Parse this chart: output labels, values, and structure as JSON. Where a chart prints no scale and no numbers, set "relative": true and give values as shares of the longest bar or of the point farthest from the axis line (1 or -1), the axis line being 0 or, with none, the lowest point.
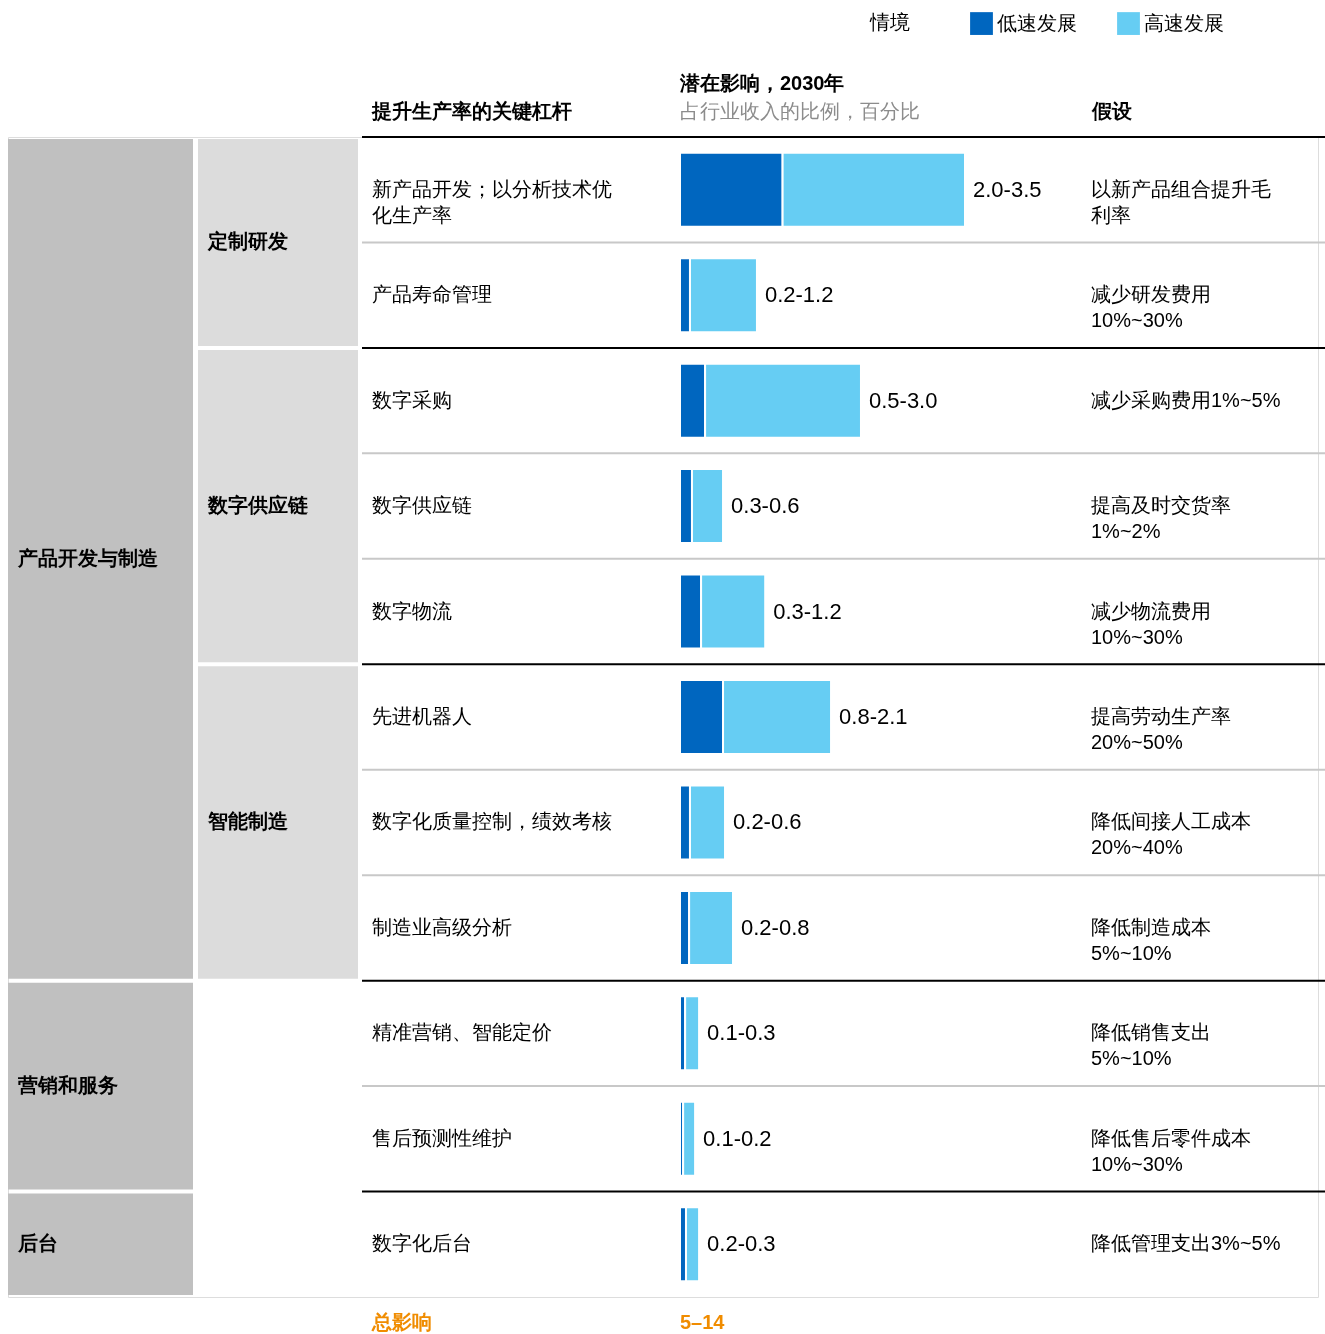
{
  "chart_data": {
    "type": "bar",
    "orientation": "horizontal",
    "stacked": true,
    "relative": true,
    "title": "潜在影响，2030年",
    "subtitle": "占行业收入的比例，百分比",
    "legend_title": "情境",
    "legend": "top right",
    "categories": [
      "新产品开发；以分析技术优化生产率",
      "产品寿命管理",
      "数字采购",
      "数字供应链",
      "数字物流",
      "先进机器人",
      "数字化质量控制，绩效考核",
      "制造业高级分析",
      "精准营销、智能定价",
      "售后预测性维护",
      "数字化后台"
    ],
    "series": [
      {
        "name": "低速发展",
        "color": "#0066bf",
        "values": [
          0.36,
          0.035,
          0.088,
          0.042,
          0.074,
          0.151,
          0.035,
          0.032,
          0.018,
          0.011,
          0.021
        ]
      },
      {
        "name": "高速发展",
        "color": "#66cdf3",
        "values": [
          0.64,
          0.235,
          0.547,
          0.109,
          0.225,
          0.379,
          0.123,
          0.154,
          0.049,
          0.042,
          0.046
        ]
      }
    ],
    "totals": [
      "2.0-3.5",
      "0.2-1.2",
      "0.5-3.0",
      "0.3-0.6",
      "0.3-1.2",
      "0.8-2.1",
      "0.2-0.6",
      "0.2-0.8",
      "0.1-0.3",
      "0.1-0.2",
      "0.2-0.3"
    ],
    "annotations": [
      "提升生产率的关键杠杆",
      "假设",
      "总影响",
      "5–14",
      "产品开发与制造",
      "营销和服务",
      "后台",
      "定制研发",
      "数字供应链",
      "智能制造",
      "以新产品组合提升毛利率",
      "减少研发费用10%~30%",
      "减少采购费用1%~5%",
      "提高及时交货率1%~2%",
      "减少物流费用10%~30%",
      "提高劳动生产率20%~50%",
      "降低间接人工成本20%~40%",
      "降低制造成本5%~10%",
      "降低销售支出5%~10%",
      "降低售后零件成本10%~30%",
      "降低管理支出3%~5%"
    ]
  }
}
